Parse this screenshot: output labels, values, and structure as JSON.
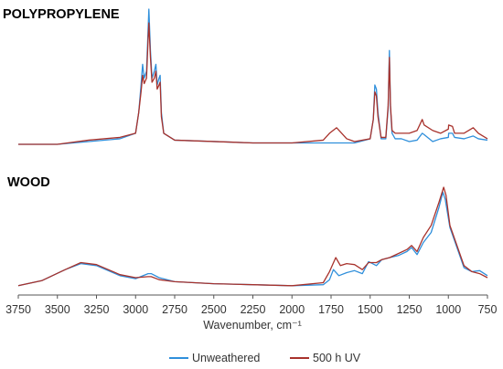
{
  "chart_data": {
    "type": "line",
    "xlabel": "Wavenumber, cm⁻¹",
    "x_reversed": true,
    "xlim": [
      3750,
      750
    ],
    "x_ticks": [
      "3750",
      "3500",
      "3250",
      "3000",
      "2750",
      "2500",
      "2250",
      "2000",
      "1750",
      "1500",
      "1250",
      "1000",
      "750"
    ],
    "ylabel": "",
    "grid": false,
    "legend": {
      "position": "bottom-center",
      "entries": [
        "Unweathered",
        "500 h UV"
      ]
    },
    "colors": {
      "Unweathered": "#2f8fdb",
      "500 h UV": "#a8322c"
    },
    "panels": [
      {
        "title": "POLYPROPYLENE",
        "series": [
          {
            "name": "Unweathered",
            "points": [
              [
                3750,
                0.02
              ],
              [
                3500,
                0.02
              ],
              [
                3300,
                0.04
              ],
              [
                3100,
                0.06
              ],
              [
                3000,
                0.1
              ],
              [
                2980,
                0.25
              ],
              [
                2965,
                0.45
              ],
              [
                2955,
                0.6
              ],
              [
                2945,
                0.5
              ],
              [
                2930,
                0.55
              ],
              [
                2920,
                0.85
              ],
              [
                2915,
                1.0
              ],
              [
                2905,
                0.7
              ],
              [
                2895,
                0.5
              ],
              [
                2880,
                0.55
              ],
              [
                2870,
                0.6
              ],
              [
                2862,
                0.45
              ],
              [
                2850,
                0.5
              ],
              [
                2843,
                0.52
              ],
              [
                2835,
                0.25
              ],
              [
                2820,
                0.1
              ],
              [
                2750,
                0.05
              ],
              [
                2500,
                0.04
              ],
              [
                2250,
                0.03
              ],
              [
                2000,
                0.03
              ],
              [
                1800,
                0.03
              ],
              [
                1700,
                0.03
              ],
              [
                1600,
                0.03
              ],
              [
                1500,
                0.06
              ],
              [
                1480,
                0.2
              ],
              [
                1470,
                0.45
              ],
              [
                1460,
                0.42
              ],
              [
                1450,
                0.25
              ],
              [
                1430,
                0.06
              ],
              [
                1400,
                0.06
              ],
              [
                1385,
                0.28
              ],
              [
                1377,
                0.7
              ],
              [
                1370,
                0.28
              ],
              [
                1360,
                0.1
              ],
              [
                1340,
                0.06
              ],
              [
                1300,
                0.06
              ],
              [
                1250,
                0.04
              ],
              [
                1200,
                0.05
              ],
              [
                1167,
                0.1
              ],
              [
                1155,
                0.09
              ],
              [
                1100,
                0.04
              ],
              [
                1050,
                0.06
              ],
              [
                1000,
                0.07
              ],
              [
                998,
                0.1
              ],
              [
                974,
                0.1
              ],
              [
                960,
                0.07
              ],
              [
                900,
                0.06
              ],
              [
                841,
                0.08
              ],
              [
                808,
                0.06
              ],
              [
                750,
                0.05
              ]
            ]
          },
          {
            "name": "500 h UV",
            "points": [
              [
                3750,
                0.02
              ],
              [
                3500,
                0.02
              ],
              [
                3300,
                0.05
              ],
              [
                3100,
                0.07
              ],
              [
                3000,
                0.1
              ],
              [
                2980,
                0.25
              ],
              [
                2965,
                0.4
              ],
              [
                2955,
                0.52
              ],
              [
                2945,
                0.46
              ],
              [
                2930,
                0.5
              ],
              [
                2920,
                0.78
              ],
              [
                2915,
                0.9
              ],
              [
                2905,
                0.65
              ],
              [
                2895,
                0.47
              ],
              [
                2880,
                0.5
              ],
              [
                2870,
                0.55
              ],
              [
                2862,
                0.42
              ],
              [
                2850,
                0.45
              ],
              [
                2843,
                0.47
              ],
              [
                2835,
                0.22
              ],
              [
                2820,
                0.1
              ],
              [
                2750,
                0.05
              ],
              [
                2500,
                0.04
              ],
              [
                2250,
                0.03
              ],
              [
                2000,
                0.03
              ],
              [
                1800,
                0.05
              ],
              [
                1760,
                0.1
              ],
              [
                1715,
                0.14
              ],
              [
                1690,
                0.11
              ],
              [
                1650,
                0.06
              ],
              [
                1600,
                0.04
              ],
              [
                1500,
                0.06
              ],
              [
                1480,
                0.2
              ],
              [
                1470,
                0.4
              ],
              [
                1460,
                0.37
              ],
              [
                1450,
                0.22
              ],
              [
                1430,
                0.07
              ],
              [
                1400,
                0.07
              ],
              [
                1385,
                0.3
              ],
              [
                1377,
                0.65
              ],
              [
                1370,
                0.3
              ],
              [
                1360,
                0.12
              ],
              [
                1340,
                0.1
              ],
              [
                1300,
                0.1
              ],
              [
                1250,
                0.1
              ],
              [
                1200,
                0.12
              ],
              [
                1167,
                0.2
              ],
              [
                1155,
                0.16
              ],
              [
                1100,
                0.12
              ],
              [
                1050,
                0.1
              ],
              [
                1000,
                0.13
              ],
              [
                998,
                0.16
              ],
              [
                974,
                0.15
              ],
              [
                960,
                0.1
              ],
              [
                900,
                0.1
              ],
              [
                841,
                0.14
              ],
              [
                808,
                0.1
              ],
              [
                750,
                0.06
              ]
            ]
          }
        ]
      },
      {
        "title": "WOOD",
        "series": [
          {
            "name": "Unweathered",
            "points": [
              [
                3750,
                0.02
              ],
              [
                3600,
                0.07
              ],
              [
                3450,
                0.18
              ],
              [
                3350,
                0.24
              ],
              [
                3250,
                0.22
              ],
              [
                3100,
                0.12
              ],
              [
                3000,
                0.09
              ],
              [
                2920,
                0.14
              ],
              [
                2900,
                0.14
              ],
              [
                2850,
                0.1
              ],
              [
                2750,
                0.06
              ],
              [
                2500,
                0.04
              ],
              [
                2250,
                0.03
              ],
              [
                2000,
                0.02
              ],
              [
                1800,
                0.03
              ],
              [
                1760,
                0.08
              ],
              [
                1735,
                0.18
              ],
              [
                1700,
                0.12
              ],
              [
                1650,
                0.15
              ],
              [
                1600,
                0.17
              ],
              [
                1550,
                0.14
              ],
              [
                1510,
                0.26
              ],
              [
                1460,
                0.22
              ],
              [
                1425,
                0.28
              ],
              [
                1375,
                0.3
              ],
              [
                1320,
                0.32
              ],
              [
                1265,
                0.36
              ],
              [
                1235,
                0.4
              ],
              [
                1200,
                0.33
              ],
              [
                1160,
                0.45
              ],
              [
                1110,
                0.55
              ],
              [
                1060,
                0.8
              ],
              [
                1035,
                0.95
              ],
              [
                1020,
                0.88
              ],
              [
                990,
                0.6
              ],
              [
                900,
                0.2
              ],
              [
                850,
                0.16
              ],
              [
                800,
                0.17
              ],
              [
                750,
                0.12
              ]
            ]
          },
          {
            "name": "500 h UV",
            "points": [
              [
                3750,
                0.02
              ],
              [
                3600,
                0.07
              ],
              [
                3450,
                0.18
              ],
              [
                3350,
                0.25
              ],
              [
                3250,
                0.23
              ],
              [
                3100,
                0.13
              ],
              [
                3000,
                0.1
              ],
              [
                2920,
                0.11
              ],
              [
                2900,
                0.11
              ],
              [
                2850,
                0.08
              ],
              [
                2750,
                0.06
              ],
              [
                2500,
                0.04
              ],
              [
                2250,
                0.03
              ],
              [
                2000,
                0.02
              ],
              [
                1800,
                0.05
              ],
              [
                1760,
                0.16
              ],
              [
                1720,
                0.3
              ],
              [
                1690,
                0.22
              ],
              [
                1650,
                0.24
              ],
              [
                1600,
                0.23
              ],
              [
                1550,
                0.18
              ],
              [
                1510,
                0.25
              ],
              [
                1460,
                0.25
              ],
              [
                1425,
                0.28
              ],
              [
                1375,
                0.3
              ],
              [
                1320,
                0.34
              ],
              [
                1265,
                0.38
              ],
              [
                1235,
                0.42
              ],
              [
                1200,
                0.36
              ],
              [
                1160,
                0.5
              ],
              [
                1110,
                0.62
              ],
              [
                1060,
                0.85
              ],
              [
                1030,
                1.0
              ],
              [
                1015,
                0.92
              ],
              [
                990,
                0.62
              ],
              [
                900,
                0.22
              ],
              [
                850,
                0.16
              ],
              [
                800,
                0.14
              ],
              [
                750,
                0.1
              ]
            ]
          }
        ]
      }
    ]
  }
}
